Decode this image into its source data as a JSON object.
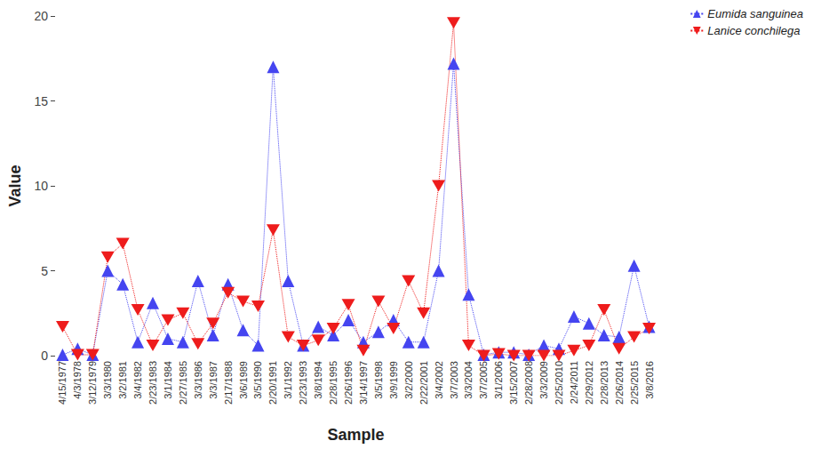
{
  "chart_data": {
    "type": "line",
    "x_label": "Sample",
    "y_label": "Value",
    "categories": [
      "4/15/1977",
      "4/3/1978",
      "3/12/1979",
      "3/3/1980",
      "3/2/1981",
      "3/4/1982",
      "2/23/1983",
      "3/1/1984",
      "2/27/1985",
      "3/3/1986",
      "3/3/1987",
      "2/17/1988",
      "3/6/1989",
      "3/5/1990",
      "2/20/1991",
      "3/1/1992",
      "2/23/1993",
      "3/8/1994",
      "2/28/1995",
      "2/26/1996",
      "3/14/1997",
      "3/5/1998",
      "3/9/1999",
      "3/2/2000",
      "2/22/2001",
      "3/4/2002",
      "3/7/2003",
      "3/3/2004",
      "3/7/2005",
      "3/1/2006",
      "3/15/2007",
      "2/28/2008",
      "3/3/2009",
      "2/25/2010",
      "2/24/2011",
      "2/29/2012",
      "2/28/2013",
      "2/26/2014",
      "2/25/2015",
      "3/8/2016"
    ],
    "series": [
      {
        "name": "Eumida sanguinea",
        "color": "#4545f0",
        "marker": "triangle-up",
        "line_style": "dotted",
        "values": [
          0.05,
          0.4,
          0.05,
          5.0,
          4.2,
          0.8,
          3.1,
          1.0,
          0.8,
          4.4,
          1.2,
          4.2,
          1.5,
          0.6,
          17.0,
          4.4,
          0.6,
          1.7,
          1.2,
          2.1,
          0.8,
          1.4,
          2.1,
          0.8,
          0.8,
          5.0,
          17.2,
          3.6,
          0.05,
          0.2,
          0.2,
          0.05,
          0.6,
          0.4,
          2.3,
          1.9,
          1.2,
          1.1,
          5.3,
          1.7
        ]
      },
      {
        "name": "Lanice conchilega",
        "color": "#ee1c1c",
        "marker": "triangle-down",
        "line_style": "dotted",
        "values": [
          1.7,
          0.05,
          0.05,
          5.8,
          6.6,
          2.7,
          0.6,
          2.1,
          2.5,
          0.7,
          1.9,
          3.7,
          3.2,
          2.9,
          7.4,
          1.1,
          0.6,
          0.9,
          1.6,
          3.0,
          0.3,
          3.2,
          1.6,
          4.4,
          2.5,
          10.0,
          19.6,
          0.6,
          0.0,
          0.1,
          0.0,
          0.0,
          0.0,
          0.0,
          0.3,
          0.6,
          2.7,
          0.4,
          1.1,
          1.6
        ]
      }
    ],
    "ylim": [
      0,
      20
    ],
    "yticks": [
      0,
      5,
      10,
      15,
      20
    ],
    "grid": false,
    "legend": "top-right"
  }
}
